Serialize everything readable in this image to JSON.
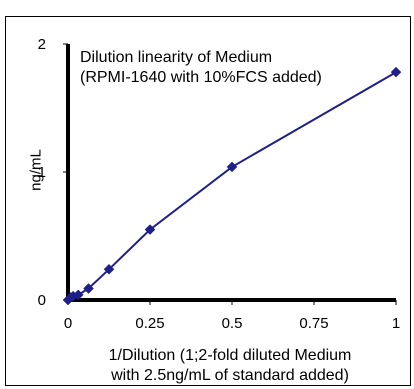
{
  "chart_data": {
    "type": "line",
    "series": [
      {
        "x": [
          0.0,
          0.0039,
          0.0078,
          0.0156,
          0.03125,
          0.0625,
          0.125,
          0.25,
          0.5,
          1.0
        ],
        "y": [
          0.0,
          0.01,
          0.02,
          0.03,
          0.04,
          0.09,
          0.24,
          0.55,
          1.04,
          1.78
        ],
        "color": "#1F1F8A"
      }
    ],
    "xlabel_lines": [
      "1/Dilution (1;2-fold diluted Medium",
      "with 2.5ng/mL of standard added)"
    ],
    "ylabel": "ng/mL",
    "annotation_lines": [
      "Dilution linearity of Medium",
      "(RPMI-1640 with 10%FCS added)"
    ],
    "xticks": [
      "0",
      "0.25",
      "0.5",
      "0.75",
      "1"
    ],
    "xtick_values": [
      0,
      0.25,
      0.5,
      0.75,
      1
    ],
    "yticks": [
      "0",
      "1",
      "2"
    ],
    "ytick_values": [
      0,
      1,
      2
    ],
    "xlim": [
      0,
      1
    ],
    "ylim": [
      0,
      2
    ],
    "grid": false,
    "legend": "none"
  }
}
